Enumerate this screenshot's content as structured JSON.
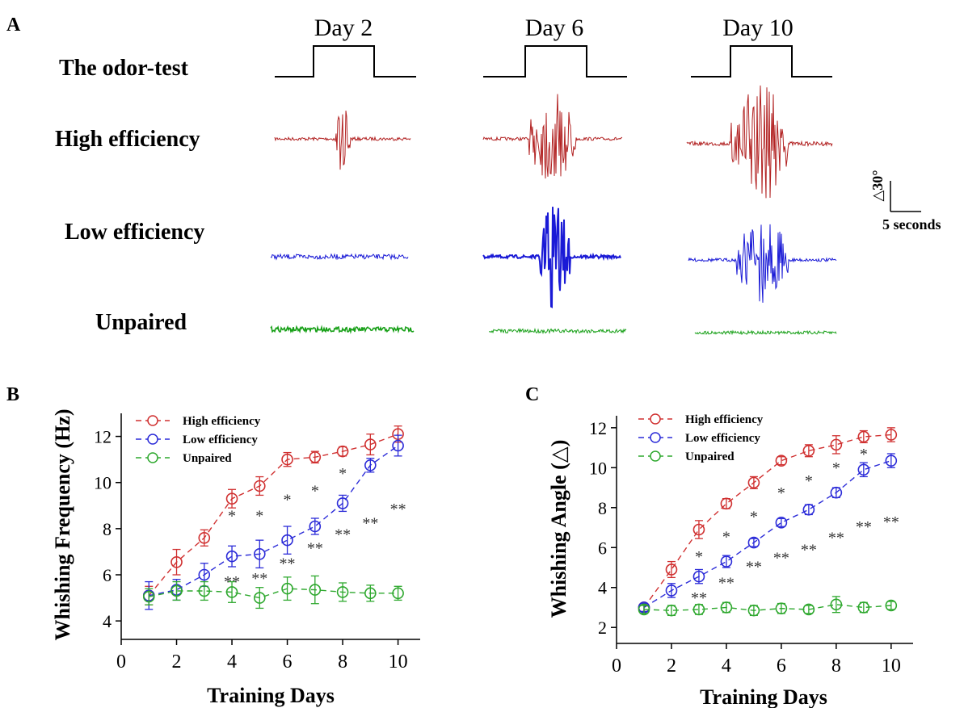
{
  "panel_a": {
    "letter": "A",
    "days": [
      "Day 2",
      "Day 6",
      "Day 10"
    ],
    "row_labels": [
      "The odor-test",
      "High efficiency",
      "Low efficiency",
      "Unpaired"
    ],
    "scale_bar": {
      "angle_label": "△30°",
      "time_label": "5 seconds"
    },
    "colors": {
      "high": "#b22222",
      "low": "#1a1ad6",
      "unpaired": "#18a018",
      "odor": "#000000"
    }
  },
  "chart_data": [
    {
      "panel": "B",
      "type": "line",
      "xlabel": "Training Days",
      "ylabel": "Whishing Frequency (Hz)",
      "xlim": [
        0,
        10.8
      ],
      "ylim": [
        3.2,
        13
      ],
      "xticks": [
        0,
        2,
        4,
        6,
        8,
        10
      ],
      "yticks": [
        4,
        6,
        8,
        10,
        12
      ],
      "legend_position": "top-left",
      "x": [
        1,
        2,
        3,
        4,
        5,
        6,
        7,
        8,
        9,
        10
      ],
      "series": [
        {
          "name": "High efficiency",
          "color": "#d03030",
          "values": [
            5.1,
            6.55,
            7.6,
            9.3,
            9.85,
            11.0,
            11.1,
            11.35,
            11.65,
            12.1
          ],
          "errors": [
            0.4,
            0.55,
            0.35,
            0.4,
            0.4,
            0.3,
            0.25,
            0.2,
            0.45,
            0.35
          ]
        },
        {
          "name": "Low efficiency",
          "color": "#2b2bd8",
          "values": [
            5.1,
            5.35,
            6.0,
            6.8,
            6.9,
            7.5,
            8.1,
            9.1,
            10.75,
            11.6
          ],
          "errors": [
            0.6,
            0.45,
            0.5,
            0.45,
            0.6,
            0.6,
            0.35,
            0.35,
            0.3,
            0.45
          ]
        },
        {
          "name": "Unpaired",
          "color": "#2ea82e",
          "values": [
            5.05,
            5.3,
            5.3,
            5.25,
            5.0,
            5.4,
            5.35,
            5.25,
            5.2,
            5.2
          ],
          "errors": [
            0.35,
            0.4,
            0.4,
            0.45,
            0.45,
            0.5,
            0.6,
            0.4,
            0.35,
            0.3
          ]
        }
      ],
      "annotations": [
        {
          "x": 4,
          "y": 8.6,
          "text": "*"
        },
        {
          "x": 5,
          "y": 8.6,
          "text": "*"
        },
        {
          "x": 6,
          "y": 9.3,
          "text": "*"
        },
        {
          "x": 7,
          "y": 9.7,
          "text": "*"
        },
        {
          "x": 8,
          "y": 10.45,
          "text": "*"
        },
        {
          "x": 4,
          "y": 5.75,
          "text": "**"
        },
        {
          "x": 5,
          "y": 5.9,
          "text": "**"
        },
        {
          "x": 6,
          "y": 6.55,
          "text": "**"
        },
        {
          "x": 7,
          "y": 7.2,
          "text": "**"
        },
        {
          "x": 8,
          "y": 7.8,
          "text": "**"
        },
        {
          "x": 9,
          "y": 8.3,
          "text": "**"
        },
        {
          "x": 10,
          "y": 8.9,
          "text": "**"
        }
      ]
    },
    {
      "panel": "C",
      "type": "line",
      "xlabel": "Training Days",
      "ylabel": "Whishing Angle (△)",
      "xlim": [
        0,
        10.8
      ],
      "ylim": [
        1.2,
        12.6
      ],
      "xticks": [
        0,
        2,
        4,
        6,
        8,
        10
      ],
      "yticks": [
        2,
        4,
        6,
        8,
        10,
        12
      ],
      "legend_position": "top-left",
      "x": [
        1,
        2,
        3,
        4,
        5,
        6,
        7,
        8,
        9,
        10
      ],
      "series": [
        {
          "name": "High efficiency",
          "color": "#d03030",
          "values": [
            3.0,
            4.9,
            6.9,
            8.2,
            9.25,
            10.35,
            10.85,
            11.15,
            11.55,
            11.65
          ],
          "errors": [
            0.2,
            0.4,
            0.45,
            0.25,
            0.3,
            0.2,
            0.3,
            0.45,
            0.3,
            0.35
          ]
        },
        {
          "name": "Low efficiency",
          "color": "#2b2bd8",
          "values": [
            3.0,
            3.85,
            4.55,
            5.3,
            6.25,
            7.25,
            7.9,
            8.75,
            9.9,
            10.35
          ],
          "errors": [
            0.2,
            0.35,
            0.35,
            0.3,
            0.2,
            0.2,
            0.25,
            0.25,
            0.35,
            0.35
          ]
        },
        {
          "name": "Unpaired",
          "color": "#2ea82e",
          "values": [
            2.9,
            2.85,
            2.9,
            3.0,
            2.85,
            2.95,
            2.9,
            3.15,
            3.0,
            3.1
          ],
          "errors": [
            0.2,
            0.25,
            0.25,
            0.25,
            0.25,
            0.25,
            0.2,
            0.4,
            0.25,
            0.2
          ]
        }
      ],
      "annotations": [
        {
          "x": 3,
          "y": 5.6,
          "text": "*"
        },
        {
          "x": 4,
          "y": 6.6,
          "text": "*"
        },
        {
          "x": 5,
          "y": 7.6,
          "text": "*"
        },
        {
          "x": 6,
          "y": 8.8,
          "text": "*"
        },
        {
          "x": 7,
          "y": 9.4,
          "text": "*"
        },
        {
          "x": 8,
          "y": 10.05,
          "text": "*"
        },
        {
          "x": 9,
          "y": 10.75,
          "text": "*"
        },
        {
          "x": 3,
          "y": 3.55,
          "text": "**"
        },
        {
          "x": 4,
          "y": 4.3,
          "text": "**"
        },
        {
          "x": 5,
          "y": 5.1,
          "text": "**"
        },
        {
          "x": 6,
          "y": 5.55,
          "text": "**"
        },
        {
          "x": 7,
          "y": 5.95,
          "text": "**"
        },
        {
          "x": 8,
          "y": 6.55,
          "text": "**"
        },
        {
          "x": 9,
          "y": 7.1,
          "text": "**"
        },
        {
          "x": 10,
          "y": 7.35,
          "text": "**"
        }
      ]
    }
  ]
}
